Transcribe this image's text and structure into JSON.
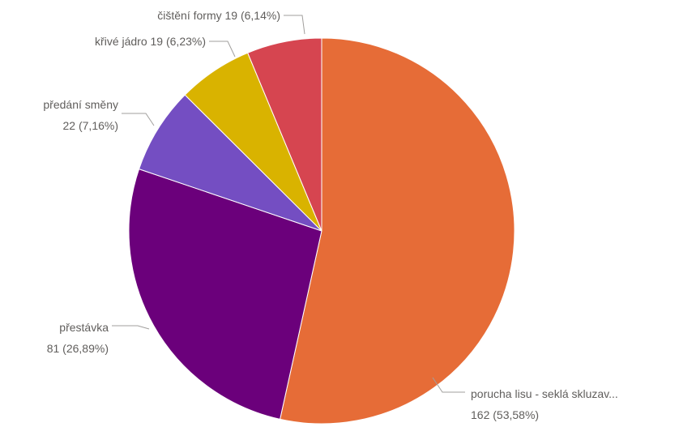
{
  "chart_data": {
    "type": "pie",
    "start_angle_deg": 0,
    "direction": "clockwise",
    "slices": [
      {
        "category": "porucha lisu - seklá skluzav...",
        "value": 162,
        "percent_label": "53,58%",
        "label_line1": "porucha lisu - seklá skluzav...",
        "label_line2": "162 (53,58%)",
        "color": "#E66C37",
        "label_side": "right"
      },
      {
        "category": "přestávka",
        "value": 81,
        "percent_label": "26,89%",
        "label_line1": "přestávka",
        "label_line2": "81 (26,89%)",
        "color": "#6B007B",
        "label_side": "left"
      },
      {
        "category": "předání směny",
        "value": 22,
        "percent_label": "7,16%",
        "label_line1": "předání směny",
        "label_line2": "22 (7,16%)",
        "color": "#744EC2",
        "label_side": "left"
      },
      {
        "category": "křivé jádro",
        "value": 19,
        "percent_label": "6,23%",
        "label_line1": "křivé jádro 19 (6,23%)",
        "label_line2": "",
        "color": "#D9B300",
        "label_side": "left"
      },
      {
        "category": "čištění formy",
        "value": 19,
        "percent_label": "6,14%",
        "label_line1": "čištění formy 19 (6,14%)",
        "label_line2": "",
        "color": "#D64550",
        "label_side": "left"
      }
    ]
  }
}
